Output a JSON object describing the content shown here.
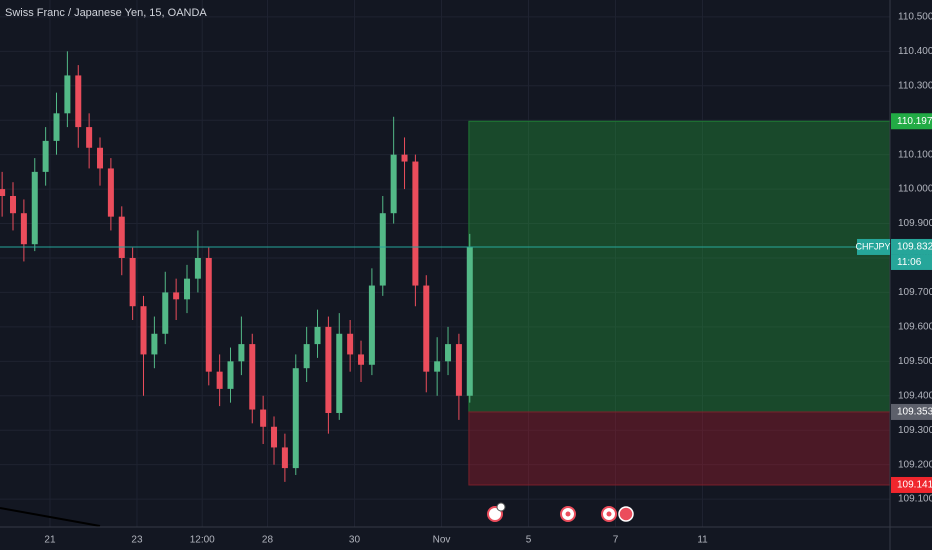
{
  "chart_data": {
    "type": "candlestick",
    "title": "Swiss Franc / Japanese Yen, 15, OANDA",
    "x": [
      -1.1,
      -0.85,
      -0.6,
      -0.35,
      -0.1,
      0.15,
      0.4,
      0.65,
      0.9,
      1.15,
      1.4,
      1.65,
      1.9,
      2.15,
      2.4,
      2.65,
      2.9,
      3.15,
      3.4,
      3.65,
      3.9,
      4.15,
      4.4,
      4.65,
      4.9,
      5.15,
      5.4,
      5.65,
      5.9,
      6.15,
      6.4,
      6.65,
      6.9,
      7.15,
      7.4,
      7.65,
      7.9,
      8.15,
      8.4,
      8.65,
      8.9,
      9.15,
      9.4,
      9.65
    ],
    "open": [
      110.0,
      109.98,
      109.93,
      109.84,
      110.05,
      110.14,
      110.22,
      110.33,
      110.18,
      110.12,
      110.06,
      109.92,
      109.8,
      109.66,
      109.52,
      109.58,
      109.7,
      109.68,
      109.74,
      109.8,
      109.47,
      109.42,
      109.5,
      109.55,
      109.36,
      109.31,
      109.25,
      109.19,
      109.48,
      109.55,
      109.6,
      109.35,
      109.58,
      109.52,
      109.49,
      109.72,
      109.93,
      110.1,
      110.08,
      109.72,
      109.47,
      109.5,
      109.55,
      109.4
    ],
    "high": [
      110.05,
      110.02,
      109.97,
      110.09,
      110.18,
      110.28,
      110.4,
      110.36,
      110.22,
      110.15,
      110.09,
      109.95,
      109.83,
      109.69,
      109.63,
      109.76,
      109.74,
      109.78,
      109.88,
      109.83,
      109.52,
      109.54,
      109.63,
      109.58,
      109.4,
      109.34,
      109.29,
      109.52,
      109.6,
      109.65,
      109.63,
      109.64,
      109.62,
      109.56,
      109.77,
      109.98,
      110.21,
      110.15,
      110.1,
      109.75,
      109.57,
      109.6,
      109.58,
      109.87
    ],
    "low": [
      109.92,
      109.88,
      109.79,
      109.82,
      110.01,
      110.1,
      110.18,
      110.12,
      110.06,
      110.01,
      109.88,
      109.75,
      109.62,
      109.4,
      109.48,
      109.55,
      109.62,
      109.64,
      109.7,
      109.43,
      109.37,
      109.38,
      109.46,
      109.32,
      109.26,
      109.2,
      109.15,
      109.17,
      109.44,
      109.51,
      109.29,
      109.33,
      109.47,
      109.44,
      109.46,
      109.69,
      109.9,
      110.0,
      109.66,
      109.41,
      109.4,
      109.46,
      109.33,
      109.38
    ],
    "close": [
      109.98,
      109.93,
      109.84,
      110.05,
      110.14,
      110.22,
      110.33,
      110.18,
      110.12,
      110.06,
      109.92,
      109.8,
      109.66,
      109.52,
      109.58,
      109.7,
      109.68,
      109.74,
      109.8,
      109.47,
      109.42,
      109.5,
      109.55,
      109.36,
      109.31,
      109.25,
      109.19,
      109.48,
      109.55,
      109.6,
      109.35,
      109.58,
      109.52,
      109.49,
      109.72,
      109.93,
      110.1,
      110.08,
      109.72,
      109.47,
      109.5,
      109.55,
      109.4,
      109.832
    ],
    "up_color": "#53b987",
    "down_color": "#eb4d5c",
    "xlim": [
      -1.149,
      19.31
    ],
    "xticks": [
      {
        "value": 0,
        "label": "21"
      },
      {
        "value": 2,
        "label": "23"
      },
      {
        "value": 3.5,
        "label": "12:00"
      },
      {
        "value": 5,
        "label": "28"
      },
      {
        "value": 7,
        "label": "30"
      },
      {
        "value": 9,
        "label": "Nov"
      },
      {
        "value": 11,
        "label": "5"
      },
      {
        "value": 13,
        "label": "7"
      },
      {
        "value": 15,
        "label": "11"
      }
    ],
    "ylim": [
      109.019,
      110.549
    ],
    "yticks": [
      {
        "value": 110.5,
        "label": "110.500"
      },
      {
        "value": 110.4,
        "label": "110.400"
      },
      {
        "value": 110.3,
        "label": "110.300"
      },
      {
        "value": 110.2,
        "label": "110.200"
      },
      {
        "value": 110.1,
        "label": "110.100"
      },
      {
        "value": 110.0,
        "label": "110.000"
      },
      {
        "value": 109.9,
        "label": "109.900"
      },
      {
        "value": 109.8,
        "label": "109.800"
      },
      {
        "value": 109.7,
        "label": "109.700"
      },
      {
        "value": 109.6,
        "label": "109.600"
      },
      {
        "value": 109.5,
        "label": "109.500"
      },
      {
        "value": 109.4,
        "label": "109.400"
      },
      {
        "value": 109.3,
        "label": "109.300"
      },
      {
        "value": 109.2,
        "label": "109.200"
      },
      {
        "value": 109.1,
        "label": "109.100"
      }
    ],
    "grid": true,
    "symbol_tag": "CHFJPY",
    "last_price": 109.832,
    "countdown": "11:06",
    "position": {
      "start_x": 9.63,
      "target": 110.197,
      "entry": 109.353,
      "stop": 109.141
    }
  }
}
